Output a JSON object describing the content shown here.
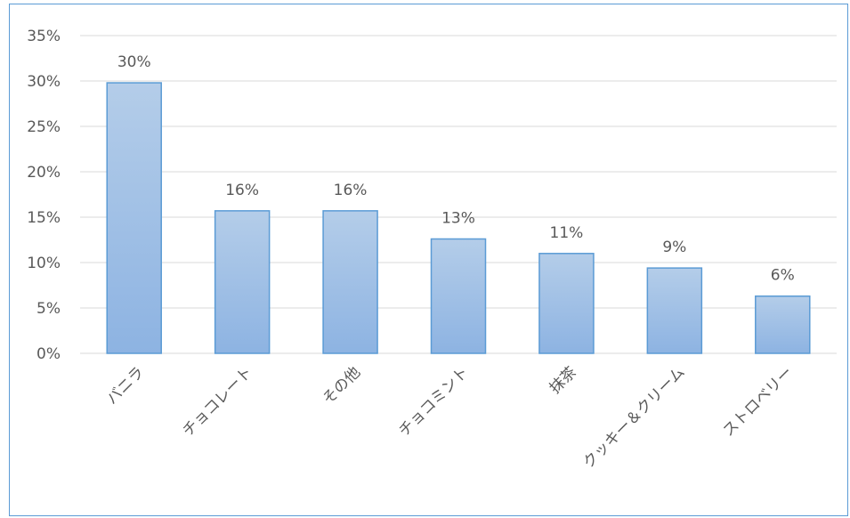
{
  "chart_data": {
    "type": "bar",
    "categories": [
      "バニラ",
      "チョコレート",
      "その他",
      "チョコミント",
      "抹茶",
      "クッキー＆クリーム",
      "ストロベリー"
    ],
    "values": [
      29.8,
      15.7,
      15.7,
      12.6,
      11.0,
      9.4,
      6.3
    ],
    "data_labels": [
      "30%",
      "16%",
      "16%",
      "13%",
      "11%",
      "9%",
      "6%"
    ],
    "ylim": [
      0,
      35
    ],
    "yticks": [
      0,
      5,
      10,
      15,
      20,
      25,
      30,
      35
    ],
    "ytick_labels": [
      "0%",
      "5%",
      "10%",
      "15%",
      "20%",
      "25%",
      "30%",
      "35%"
    ],
    "grid": true,
    "legend": "none",
    "colors": {
      "bar_fill_top": "#b4cde9",
      "bar_fill_bottom": "#8db3e2",
      "bar_stroke": "#5b9bd5",
      "gridline": "#d9d9d9",
      "text": "#595959",
      "frame": "#5b9bd5"
    }
  }
}
